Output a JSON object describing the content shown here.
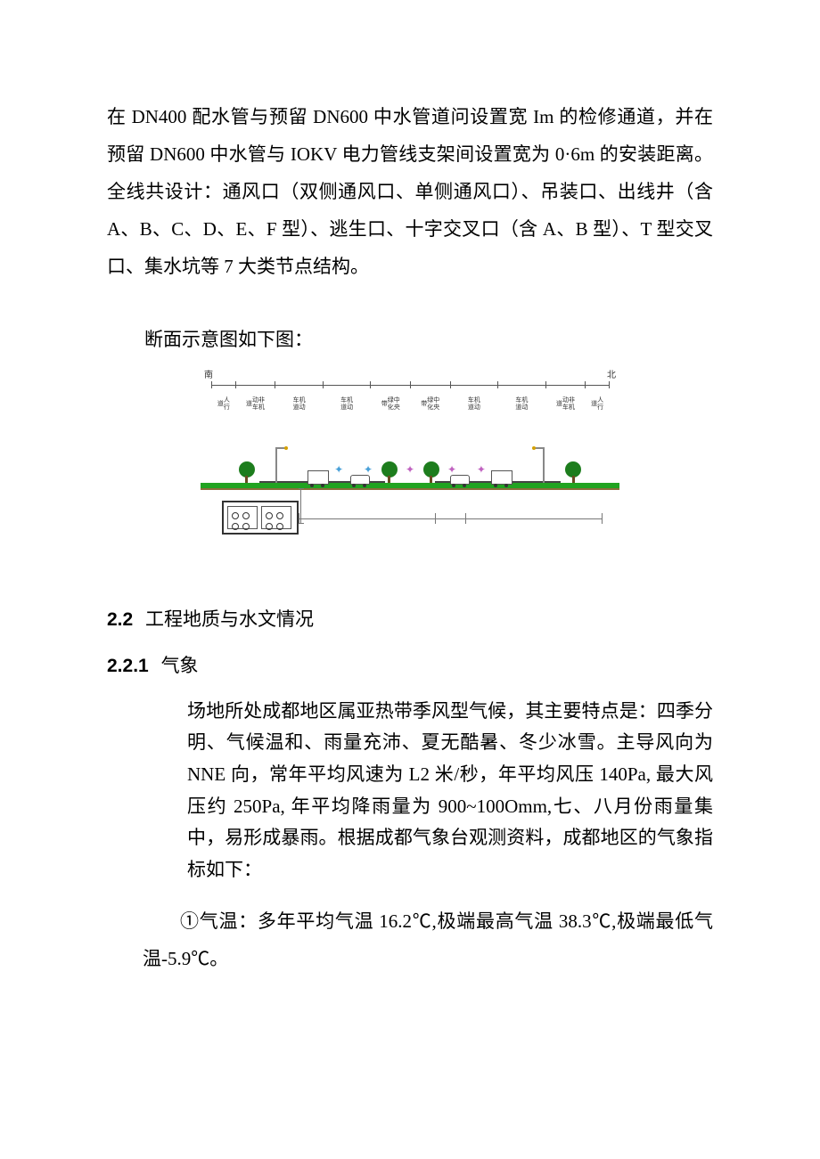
{
  "para1": "在 DN400 配水管与预留 DN600 中水管道问设置宽 Im 的检修通道，并在预留 DN600 中水管与 IOKV 电力管线支架间设置宽为 0·6m 的安装距离。全线共设计：通风口（双侧通风口、单侧通风口）、吊装口、出线井（含 A、B、C、D、E、F 型）、逃生口、十字交叉口（含 A、B 型）、T 型交叉口、集水坑等 7 大类节点结构。",
  "caption": "断面示意图如下图：",
  "section_2_2": {
    "num": "2.2",
    "title": "工程地质与水文情况"
  },
  "section_2_2_1": {
    "num": "2.2.1",
    "title": "气象"
  },
  "para_2_2_1_body": "场地所处成都地区属亚热带季风型气候，其主要特点是：四季分明、气候温和、雨量充沛、夏无酷暑、冬少冰雪。主导风向为 NNE 向，常年平均风速为 L2 米/秒，年平均风压 140Pa, 最大风压约 250Pa, 年平均降雨量为 900~100Omm,七、八月份雨量集中，易形成暴雨。根据成都气象台观测资料，成都地区的气象指标如下：",
  "para_2_2_1_item1": "①气温：多年平均气温 16.2℃,极端最高气温 38.3℃,极端最低气温-5.9℃。",
  "figure": {
    "type": "cross-section-diagram",
    "background_color": "#ffffff",
    "ground_color": "#21a321",
    "soil_color": "#8a6d3b",
    "line_color": "#555555",
    "compass": {
      "left": "南",
      "right": "北"
    },
    "top_segments": [
      {
        "pos_pct": 0,
        "label": ""
      },
      {
        "pos_pct": 6,
        "label": ""
      },
      {
        "pos_pct": 16,
        "label": ""
      },
      {
        "pos_pct": 28,
        "label": ""
      },
      {
        "pos_pct": 40,
        "label": ""
      },
      {
        "pos_pct": 50,
        "label": ""
      },
      {
        "pos_pct": 60,
        "label": ""
      },
      {
        "pos_pct": 72,
        "label": ""
      },
      {
        "pos_pct": 84,
        "label": ""
      },
      {
        "pos_pct": 94,
        "label": ""
      },
      {
        "pos_pct": 100,
        "label": ""
      }
    ],
    "column_labels": [
      {
        "pos_pct": 3,
        "text": "人行道"
      },
      {
        "pos_pct": 11,
        "text": "非机动车道"
      },
      {
        "pos_pct": 22,
        "text": "机动车道"
      },
      {
        "pos_pct": 34,
        "text": "机动车道"
      },
      {
        "pos_pct": 45,
        "text": "中央绿化带"
      },
      {
        "pos_pct": 55,
        "text": "中央绿化带"
      },
      {
        "pos_pct": 66,
        "text": "机动车道"
      },
      {
        "pos_pct": 78,
        "text": "机动车道"
      },
      {
        "pos_pct": 89,
        "text": "非机动车道"
      },
      {
        "pos_pct": 97,
        "text": "人行道"
      }
    ],
    "trees_pct": [
      11,
      45,
      55,
      89
    ],
    "lamps": [
      {
        "pos_pct": 18,
        "dir": "right"
      },
      {
        "pos_pct": 82,
        "dir": "left"
      }
    ],
    "vehicles": [
      {
        "pos_pct": 28,
        "kind": "truck"
      },
      {
        "pos_pct": 38,
        "kind": "car"
      },
      {
        "pos_pct": 62,
        "kind": "car"
      },
      {
        "pos_pct": 72,
        "kind": "truck"
      }
    ],
    "lane_marks": [
      {
        "pos_pct": 33,
        "glyph": "✦",
        "color": "#48a0d8"
      },
      {
        "pos_pct": 40,
        "glyph": "✦",
        "color": "#48a0d8"
      },
      {
        "pos_pct": 50,
        "glyph": "✦",
        "color": "#c062c0"
      },
      {
        "pos_pct": 60,
        "glyph": "✦",
        "color": "#c062c0"
      },
      {
        "pos_pct": 67,
        "glyph": "✦",
        "color": "#c062c0"
      }
    ],
    "road_spans_pct": [
      {
        "from": 14,
        "to": 44
      },
      {
        "from": 56,
        "to": 86
      }
    ],
    "bottom_segments": [
      {
        "pos_pct": 0
      },
      {
        "pos_pct": 45
      },
      {
        "pos_pct": 55
      },
      {
        "pos_pct": 100
      }
    ],
    "bottom_labels": [
      {
        "pos_pct": 22,
        "text": ""
      },
      {
        "pos_pct": 78,
        "text": ""
      }
    ]
  }
}
